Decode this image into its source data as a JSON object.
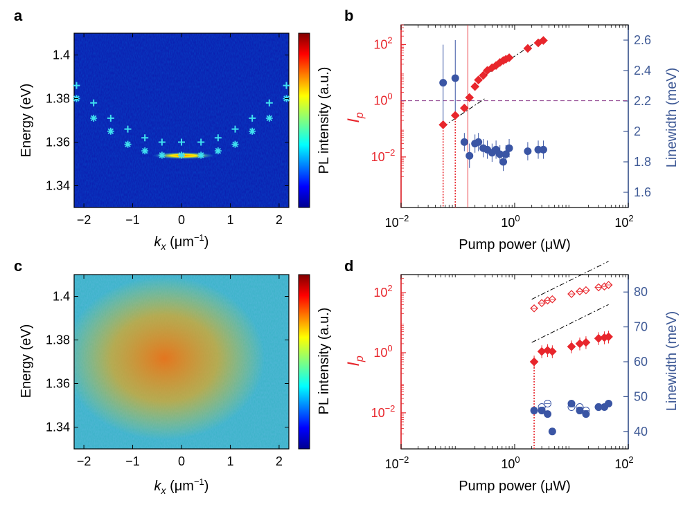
{
  "colors": {
    "red": "#e8262c",
    "blue": "#3a55a4",
    "axis_blue": "#3f5a96",
    "cyan": "#40e0f0",
    "purple": "#8a3a8a"
  },
  "panels": {
    "a": {
      "letter": "a",
      "ylabel": "Energy (eV)",
      "xlabel_main": "k",
      "xlabel_sub": "x",
      "xlabel_unit": " (μm",
      "xlabel_exp": "−1",
      "xlabel_close": ")",
      "colorbar_label": "PL intensity (a.u.)"
    },
    "b": {
      "letter": "b",
      "ylabel_left_main": "I",
      "ylabel_left_sub": "p",
      "ylabel_right": "Linewidth (meV)",
      "xlabel": "Pump power (μW)"
    },
    "c": {
      "letter": "c",
      "ylabel": "Energy (eV)",
      "xlabel_main": "k",
      "xlabel_sub": "x",
      "xlabel_unit": " (μm",
      "xlabel_exp": "−1",
      "xlabel_close": ")",
      "colorbar_label": "PL intensity (a.u.)"
    },
    "d": {
      "letter": "d",
      "ylabel_left_main": "I",
      "ylabel_left_sub": "p",
      "ylabel_right": "Linewidth (meV)",
      "xlabel": "Pump power (μW)"
    }
  },
  "chart_data": [
    {
      "panel": "a",
      "type": "heatmap",
      "xlim": [
        -2.2,
        2.2
      ],
      "ylim": [
        1.33,
        1.41
      ],
      "xticks": [
        -2,
        -1,
        0,
        1,
        2
      ],
      "xtick_labels": [
        "−2",
        "−1",
        "0",
        "1",
        "2"
      ],
      "yticks": [
        1.34,
        1.36,
        1.38,
        1.4
      ],
      "ytick_labels": [
        "1.34",
        "1.36",
        "1.38",
        "1.4"
      ],
      "plus_markers": {
        "x": [
          -2.15,
          -1.8,
          -1.45,
          -1.1,
          -0.75,
          -0.4,
          0,
          0.4,
          0.75,
          1.1,
          1.45,
          1.8,
          2.15
        ],
        "y": [
          1.386,
          1.378,
          1.371,
          1.366,
          1.362,
          1.36,
          1.36,
          1.36,
          1.362,
          1.366,
          1.371,
          1.378,
          1.386
        ]
      },
      "star_markers": {
        "x": [
          -2.15,
          -1.8,
          -1.45,
          -1.1,
          -0.75,
          -0.4,
          0,
          0.4,
          0.75,
          1.1,
          1.45,
          1.8,
          2.15
        ],
        "y": [
          1.38,
          1.371,
          1.365,
          1.359,
          1.356,
          1.354,
          1.354,
          1.354,
          1.356,
          1.359,
          1.365,
          1.371,
          1.38
        ]
      }
    },
    {
      "panel": "b",
      "type": "scatter",
      "xlim_log10": [
        -2,
        2
      ],
      "ylim_left_log10": [
        -3.8,
        2.7
      ],
      "ylim_right": [
        1.5,
        2.7
      ],
      "xticks": [
        {
          "base": "10",
          "exp": "−2"
        },
        {
          "base": "10",
          "exp": "0"
        },
        {
          "base": "",
          "exp": ""
        },
        {
          "base": "10",
          "exp": "2"
        }
      ],
      "xtick_labels_full": [
        "10−2",
        "10^0 shown as 10⁰",
        "10²"
      ],
      "left_ticks": [
        {
          "v": 2,
          "base": "10",
          "exp": "2"
        },
        {
          "v": 0,
          "base": "1",
          "exp": ".0"
        },
        {
          "v": -2,
          "base": "10",
          "exp": "−2"
        }
      ],
      "left_tick_special": "10⁰ shown as 10°",
      "right_ticks": [
        "1.6",
        "1.8",
        "2",
        "2.2",
        "2.4",
        "2.6"
      ],
      "intensity": {
        "x": [
          0.055,
          0.09,
          0.13,
          0.16,
          0.2,
          0.23,
          0.28,
          0.33,
          0.4,
          0.47,
          0.55,
          0.63,
          0.7,
          0.8,
          1.7,
          2.6,
          3.2
        ],
        "y": [
          0.14,
          0.3,
          0.55,
          1.3,
          3.2,
          5.5,
          8,
          12,
          15,
          18,
          23,
          27,
          30,
          34,
          73,
          115,
          140
        ]
      },
      "linewidth": {
        "x": [
          0.055,
          0.09,
          0.13,
          0.16,
          0.2,
          0.23,
          0.28,
          0.33,
          0.4,
          0.47,
          0.55,
          0.63,
          0.7,
          0.8,
          1.7,
          2.6,
          3.2
        ],
        "y": [
          2.32,
          2.35,
          1.93,
          1.84,
          1.92,
          1.93,
          1.89,
          1.88,
          1.86,
          1.88,
          1.85,
          1.8,
          1.85,
          1.89,
          1.87,
          1.88,
          1.88
        ]
      },
      "threshold_x": [
        0.055,
        0.09
      ]
    },
    {
      "panel": "c",
      "type": "heatmap",
      "xlim": [
        -2.2,
        2.2
      ],
      "ylim": [
        1.33,
        1.41
      ],
      "xticks": [
        -2,
        -1,
        0,
        1,
        2
      ],
      "xtick_labels": [
        "−2",
        "−1",
        "0",
        "1",
        "2"
      ],
      "yticks": [
        1.34,
        1.36,
        1.38,
        1.4
      ],
      "ytick_labels": [
        "1.34",
        "1.36",
        "1.38",
        "1.4"
      ]
    },
    {
      "panel": "d",
      "type": "scatter",
      "xlim_log10": [
        -2,
        2
      ],
      "ylim_left_log10": [
        -3.2,
        2.6
      ],
      "ylim_right": [
        35,
        85
      ],
      "left_ticks": [
        "10²",
        "10⁰",
        "10⁻²"
      ],
      "right_ticks": [
        "40",
        "50",
        "60",
        "70",
        "80"
      ],
      "intensity_filled": {
        "x": [
          2.2,
          3,
          3.8,
          4.6,
          10,
          14,
          18,
          30,
          38,
          45
        ],
        "y": [
          0.5,
          1.1,
          1.2,
          1.1,
          1.6,
          2.0,
          2.2,
          3.0,
          3.2,
          3.4
        ]
      },
      "intensity_open": {
        "x": [
          2.2,
          3,
          3.8,
          4.6,
          10,
          14,
          18,
          30,
          38,
          45
        ],
        "y": [
          30,
          45,
          55,
          60,
          90,
          110,
          120,
          150,
          160,
          180
        ]
      },
      "linewidth_filled": {
        "x": [
          2.2,
          3,
          3.8,
          4.6,
          10,
          14,
          18,
          30,
          38,
          45
        ],
        "y": [
          46,
          46,
          45,
          40,
          48,
          46,
          45,
          47,
          47,
          48
        ]
      },
      "linewidth_open": {
        "x": [
          3,
          3.8,
          10,
          14,
          18,
          30
        ],
        "y": [
          47,
          48,
          47,
          47,
          46,
          47
        ]
      },
      "threshold_x": [
        2.2
      ]
    }
  ]
}
